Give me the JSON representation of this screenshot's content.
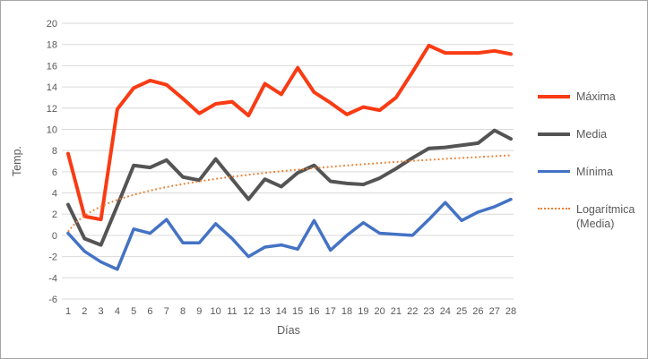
{
  "window": {
    "background": "#ffffff",
    "frame_border_color": "#a6a6a6"
  },
  "colors": {
    "maxima": "#f93b14",
    "media": "#545454",
    "minima": "#4472c4",
    "trend": "#ed7d31",
    "gridline": "#d9d9d9",
    "axis_text": "#595959"
  },
  "chart_data": {
    "type": "line",
    "title": "",
    "xlabel": "Días",
    "ylabel": "Temp.",
    "x": [
      1,
      2,
      3,
      4,
      5,
      6,
      7,
      8,
      9,
      10,
      11,
      12,
      13,
      14,
      15,
      16,
      17,
      18,
      19,
      20,
      21,
      22,
      23,
      24,
      25,
      26,
      27,
      28
    ],
    "ylim": [
      -6,
      20
    ],
    "ytick_step": 2,
    "grid": true,
    "legend_position": "right",
    "series": [
      {
        "name": "Máxima",
        "color": "#f93b14",
        "style": "solid",
        "stroke_width": 4,
        "values": [
          7.7,
          1.8,
          1.5,
          11.9,
          13.9,
          14.6,
          14.2,
          12.9,
          11.5,
          12.4,
          12.6,
          11.3,
          14.3,
          13.3,
          15.8,
          13.5,
          12.5,
          11.4,
          12.1,
          11.8,
          13.0,
          15.4,
          17.9,
          17.2,
          17.2,
          17.2,
          17.4,
          17.1
        ]
      },
      {
        "name": "Media",
        "color": "#545454",
        "style": "solid",
        "stroke_width": 4,
        "values": [
          2.9,
          -0.3,
          -0.9,
          2.8,
          6.6,
          6.4,
          7.1,
          5.5,
          5.2,
          7.2,
          5.3,
          3.4,
          5.3,
          4.6,
          5.9,
          6.6,
          5.1,
          4.9,
          4.8,
          5.4,
          6.3,
          7.3,
          8.2,
          8.3,
          8.5,
          8.7,
          9.9,
          9.1
        ]
      },
      {
        "name": "Mínima",
        "color": "#4472c4",
        "style": "solid",
        "stroke_width": 3.5,
        "values": [
          0.2,
          -1.5,
          -2.5,
          -3.2,
          0.6,
          0.2,
          1.5,
          -0.7,
          -0.7,
          1.1,
          -0.3,
          -2.0,
          -1.1,
          -0.9,
          -1.3,
          1.4,
          -1.4,
          0.0,
          1.2,
          0.2,
          0.1,
          0.0,
          1.5,
          3.1,
          1.4,
          2.2,
          2.7,
          3.4
        ]
      },
      {
        "name": "Logarítmica (Media)",
        "color": "#ed7d31",
        "style": "dotted",
        "stroke_width": 2,
        "trend": {
          "kind": "logarithmic",
          "a": 0.35,
          "b": 2.16
        },
        "values": [
          0.35,
          1.85,
          2.72,
          3.34,
          3.83,
          4.22,
          4.55,
          4.84,
          5.1,
          5.32,
          5.53,
          5.72,
          5.89,
          6.05,
          6.2,
          6.34,
          6.47,
          6.59,
          6.71,
          6.82,
          6.93,
          7.03,
          7.12,
          7.21,
          7.3,
          7.38,
          7.47,
          7.54
        ]
      }
    ]
  },
  "legend": {
    "items": [
      {
        "label": "Máxima"
      },
      {
        "label": "Media"
      },
      {
        "label": "Mínima"
      },
      {
        "label": "Logarítmica (Media)"
      }
    ]
  }
}
